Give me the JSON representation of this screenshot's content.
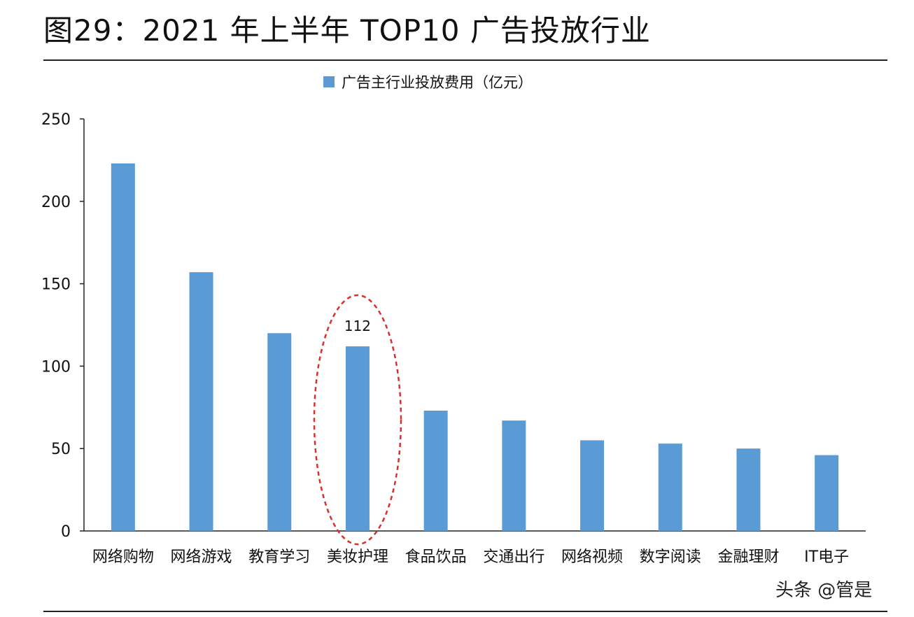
{
  "figure": {
    "title": "图29：2021 年上半年 TOP10 广告投放行业",
    "watermark": "头条 @管是"
  },
  "colors": {
    "bar": "#5b9bd5",
    "highlight_ellipse": "#d9302b",
    "axis": "#222222",
    "text": "#111111"
  },
  "chart_data": {
    "type": "bar",
    "categories": [
      "网络购物",
      "网络游戏",
      "教育学习",
      "美妆护理",
      "食品饮品",
      "交通出行",
      "网络视频",
      "数字阅读",
      "金融理财",
      "IT电子"
    ],
    "series": [
      {
        "name": "广告主行业投放费用（亿元）",
        "values": [
          223,
          157,
          120,
          112,
          73,
          67,
          55,
          53,
          50,
          46
        ]
      }
    ],
    "ylim": [
      0,
      250
    ],
    "yticks": [
      0,
      50,
      100,
      150,
      200,
      250
    ],
    "grid": false,
    "legend": "top-center",
    "annotations": [
      {
        "category": "美妆护理",
        "label": "112",
        "style": "dashed-ellipse-highlight"
      }
    ]
  }
}
